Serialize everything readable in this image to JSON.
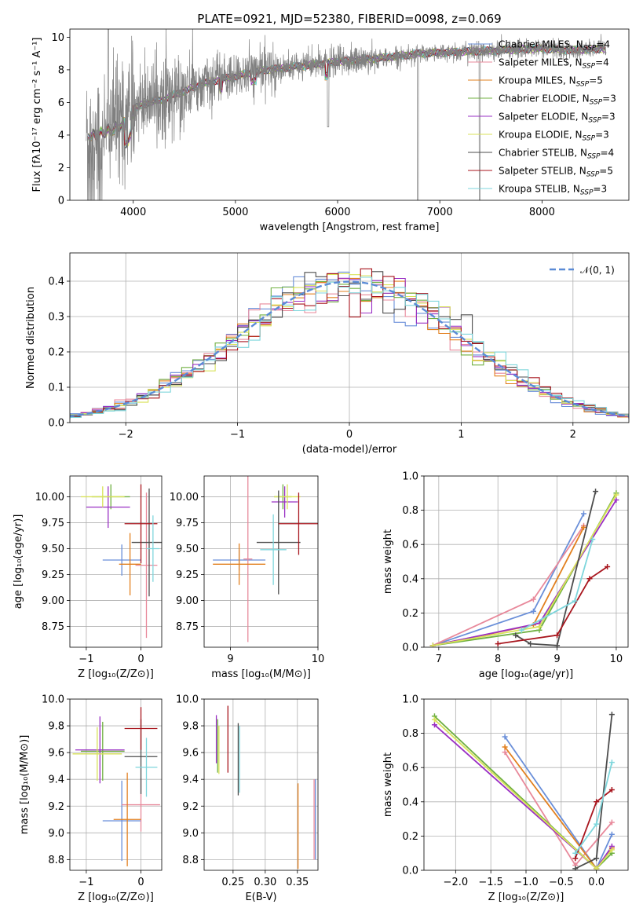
{
  "page_title": "PLATE=0921, MJD=52380, FIBERID=0098, z=0.069",
  "models": [
    {
      "name": "Chabrier MILES",
      "n": "4",
      "color": "#6a8fd9"
    },
    {
      "name": "Salpeter MILES",
      "n": "4",
      "color": "#e8899b"
    },
    {
      "name": "Kroupa MILES",
      "n": "5",
      "color": "#e2801f"
    },
    {
      "name": "Chabrier ELODIE",
      "n": "3",
      "color": "#70b042"
    },
    {
      "name": "Salpeter ELODIE",
      "n": "3",
      "color": "#9a30c4"
    },
    {
      "name": "Kroupa ELODIE",
      "n": "3",
      "color": "#d9e25a"
    },
    {
      "name": "Chabrier STELIB",
      "n": "4",
      "color": "#4d4d4d"
    },
    {
      "name": "Salpeter STELIB",
      "n": "5",
      "color": "#a8161e"
    },
    {
      "name": "Kroupa STELIB",
      "n": "3",
      "color": "#7ed6dc"
    }
  ],
  "legend_sub": "SSP",
  "chart_data": [
    {
      "id": "spectrum",
      "type": "line",
      "xlabel": "wavelength [Angstrom, rest frame]",
      "ylabel": "Flux [fλ10⁻¹⁷ erg cm⁻² s⁻¹ A⁻¹]",
      "xlim": [
        3380,
        8850
      ],
      "ylim": [
        0,
        10.5
      ],
      "xticks": [
        4000,
        5000,
        6000,
        7000,
        8000
      ],
      "yticks": [
        0,
        2,
        4,
        6,
        8,
        10
      ],
      "grid": false,
      "legend": "right",
      "continuum": {
        "x": [
          3550,
          3700,
          3800,
          3900,
          4000,
          4100,
          4300,
          4500,
          4700,
          5000,
          5300,
          5600,
          6000,
          6400,
          6800,
          7200,
          7600,
          8000,
          8300,
          8600
        ],
        "y": [
          4.2,
          4.3,
          4.6,
          4.9,
          5.6,
          5.9,
          6.2,
          6.7,
          7.2,
          7.6,
          8.0,
          8.2,
          8.5,
          8.7,
          9.0,
          9.1,
          9.2,
          9.3,
          9.2,
          9.3
        ]
      }
    },
    {
      "id": "residuals",
      "type": "histogram",
      "xlabel": "(data-model)/error",
      "ylabel": "Normed distribution",
      "xlim": [
        -2.5,
        2.5
      ],
      "ylim": [
        0,
        0.48
      ],
      "xticks": [
        -2,
        -1,
        0,
        1,
        2
      ],
      "yticks": [
        0.0,
        0.1,
        0.2,
        0.3,
        0.4
      ],
      "grid": true,
      "legend": "top-right",
      "reference": "𝒩(0, 1)"
    },
    {
      "id": "age-vs-z",
      "type": "errorbar",
      "xlabel": "Z [log₁₀(Z/Z⊙)]",
      "ylabel": "age  [log₁₀(age/yr)]",
      "xlim": [
        -1.3,
        0.38
      ],
      "ylim": [
        8.55,
        10.2
      ],
      "xticks": [
        -1,
        0
      ],
      "yticks": [
        8.75,
        9.0,
        9.25,
        9.5,
        9.75,
        10.0
      ],
      "grid": true,
      "points": [
        {
          "x": -0.35,
          "y": 9.39,
          "xerr": 0.35,
          "yerr": 0.15,
          "color": "#6a8fd9"
        },
        {
          "x": 0.1,
          "y": 9.34,
          "xerr": 0.2,
          "yerr": 0.7,
          "color": "#e8899b"
        },
        {
          "x": -0.2,
          "y": 9.35,
          "xerr": 0.2,
          "yerr": 0.3,
          "color": "#e2801f"
        },
        {
          "x": -0.55,
          "y": 10.0,
          "xerr": 0.35,
          "yerr": 0.12,
          "color": "#70b042"
        },
        {
          "x": -0.6,
          "y": 9.9,
          "xerr": 0.4,
          "yerr": 0.2,
          "color": "#9a30c4"
        },
        {
          "x": -0.7,
          "y": 10.0,
          "xerr": 0.4,
          "yerr": 0.1,
          "color": "#d9e25a"
        },
        {
          "x": 0.15,
          "y": 9.56,
          "xerr": 0.32,
          "yerr": 0.52,
          "color": "#4d4d4d"
        },
        {
          "x": 0.0,
          "y": 9.74,
          "xerr": 0.3,
          "yerr": 0.38,
          "color": "#a8161e"
        },
        {
          "x": 0.22,
          "y": 9.5,
          "xerr": 0.12,
          "yerr": 0.32,
          "color": "#7ed6dc"
        }
      ]
    },
    {
      "id": "age-vs-mass",
      "type": "errorbar",
      "xlabel": "mass [log₁₀(M/M⊙)]",
      "ylabel": "",
      "xlim": [
        8.7,
        10.0
      ],
      "ylim": [
        8.55,
        10.2
      ],
      "xticks": [
        9,
        10
      ],
      "yticks": [
        8.75,
        9.0,
        9.25,
        9.5,
        9.75,
        10.0
      ],
      "grid": true,
      "points": [
        {
          "x": 9.1,
          "y": 9.39,
          "xerr": 0.3,
          "yerr": 0.1,
          "color": "#6a8fd9"
        },
        {
          "x": 9.2,
          "y": 9.4,
          "xerr": 0.05,
          "yerr": 0.8,
          "color": "#e8899b"
        },
        {
          "x": 9.1,
          "y": 9.35,
          "xerr": 0.3,
          "yerr": 0.2,
          "color": "#e2801f"
        },
        {
          "x": 9.6,
          "y": 10.0,
          "xerr": 0.1,
          "yerr": 0.12,
          "color": "#70b042"
        },
        {
          "x": 9.62,
          "y": 9.95,
          "xerr": 0.15,
          "yerr": 0.15,
          "color": "#9a30c4"
        },
        {
          "x": 9.65,
          "y": 10.0,
          "xerr": 0.15,
          "yerr": 0.12,
          "color": "#d9e25a"
        },
        {
          "x": 9.55,
          "y": 9.56,
          "xerr": 0.25,
          "yerr": 0.5,
          "color": "#4d4d4d"
        },
        {
          "x": 9.78,
          "y": 9.74,
          "xerr": 0.23,
          "yerr": 0.3,
          "color": "#a8161e"
        },
        {
          "x": 9.49,
          "y": 9.49,
          "xerr": 0.15,
          "yerr": 0.34,
          "color": "#7ed6dc"
        }
      ]
    },
    {
      "id": "weight-vs-age",
      "type": "line",
      "xlabel": "age  [log₁₀(age/yr)]",
      "ylabel": "mass weight",
      "xlim": [
        6.75,
        10.2
      ],
      "ylim": [
        0,
        1.0
      ],
      "xticks": [
        7,
        8,
        9,
        10
      ],
      "yticks": [
        0.0,
        0.2,
        0.4,
        0.6,
        0.8,
        1.0
      ],
      "grid": true,
      "series": [
        {
          "x": [
            6.9,
            8.6,
            9.45
          ],
          "y": [
            0.01,
            0.21,
            0.78
          ],
          "color": "#6a8fd9"
        },
        {
          "x": [
            6.9,
            8.6,
            9.45
          ],
          "y": [
            0.01,
            0.28,
            0.71
          ],
          "color": "#e8899b"
        },
        {
          "x": [
            6.9,
            8.6,
            9.45
          ],
          "y": [
            0.01,
            0.13,
            0.7
          ],
          "color": "#e2801f"
        },
        {
          "x": [
            6.9,
            8.7,
            10.0
          ],
          "y": [
            0.01,
            0.1,
            0.9
          ],
          "color": "#70b042"
        },
        {
          "x": [
            6.9,
            8.7,
            10.0
          ],
          "y": [
            0.01,
            0.14,
            0.86
          ],
          "color": "#9a30c4"
        },
        {
          "x": [
            6.9,
            8.7,
            10.0
          ],
          "y": [
            0.01,
            0.12,
            0.89
          ],
          "color": "#d9e25a"
        },
        {
          "x": [
            8.3,
            8.55,
            9.0,
            9.65
          ],
          "y": [
            0.07,
            0.02,
            0.01,
            0.91
          ],
          "color": "#4d4d4d"
        },
        {
          "x": [
            8.0,
            9.0,
            9.55,
            9.85
          ],
          "y": [
            0.02,
            0.07,
            0.4,
            0.47
          ],
          "color": "#a8161e"
        },
        {
          "x": [
            8.4,
            9.3,
            9.6
          ],
          "y": [
            0.1,
            0.27,
            0.63
          ],
          "color": "#7ed6dc"
        }
      ]
    },
    {
      "id": "mass-vs-z",
      "type": "errorbar",
      "xlabel": "Z [log₁₀(Z/Z⊙)]",
      "ylabel": "mass [log₁₀(M/M⊙)]",
      "xlim": [
        -1.3,
        0.38
      ],
      "ylim": [
        8.72,
        10.0
      ],
      "xticks": [
        -1,
        0
      ],
      "yticks": [
        8.8,
        9.0,
        9.2,
        9.4,
        9.6,
        9.8,
        10.0
      ],
      "grid": true,
      "points": [
        {
          "x": -0.35,
          "y": 9.09,
          "xerr": 0.35,
          "yerr": 0.3,
          "color": "#6a8fd9"
        },
        {
          "x": 0.0,
          "y": 9.21,
          "xerr": 0.35,
          "yerr": 0.2,
          "color": "#e8899b"
        },
        {
          "x": -0.25,
          "y": 9.1,
          "xerr": 0.25,
          "yerr": 0.35,
          "color": "#e2801f"
        },
        {
          "x": -0.7,
          "y": 9.61,
          "xerr": 0.4,
          "yerr": 0.22,
          "color": "#70b042"
        },
        {
          "x": -0.75,
          "y": 9.62,
          "xerr": 0.45,
          "yerr": 0.25,
          "color": "#9a30c4"
        },
        {
          "x": -0.8,
          "y": 9.59,
          "xerr": 0.45,
          "yerr": 0.2,
          "color": "#d9e25a"
        },
        {
          "x": 0.0,
          "y": 9.57,
          "xerr": 0.3,
          "yerr": 0.28,
          "color": "#4d4d4d"
        },
        {
          "x": 0.0,
          "y": 9.78,
          "xerr": 0.3,
          "yerr": 0.16,
          "color": "#a8161e"
        },
        {
          "x": 0.1,
          "y": 9.49,
          "xerr": 0.2,
          "yerr": 0.22,
          "color": "#7ed6dc"
        }
      ]
    },
    {
      "id": "mass-vs-ebv",
      "type": "errorbar",
      "xlabel": "E(B-V)",
      "ylabel": "",
      "xlim": [
        0.205,
        0.382
      ],
      "ylim": [
        8.72,
        10.0
      ],
      "xticks": [
        0.25,
        0.3,
        0.35
      ],
      "yticks": [
        8.8,
        9.0,
        9.2,
        9.4,
        9.6,
        9.8,
        10.0
      ],
      "grid": true,
      "points": [
        {
          "x": 0.378,
          "y": 9.1,
          "xerr": 0,
          "yerr": 0.3,
          "color": "#6a8fd9"
        },
        {
          "x": 0.376,
          "y": 9.1,
          "xerr": 0,
          "yerr": 0.3,
          "color": "#e8899b"
        },
        {
          "x": 0.351,
          "y": 9.05,
          "xerr": 0,
          "yerr": 0.32,
          "color": "#e2801f"
        },
        {
          "x": 0.226,
          "y": 9.65,
          "xerr": 0,
          "yerr": 0.2,
          "color": "#70b042"
        },
        {
          "x": 0.224,
          "y": 9.7,
          "xerr": 0,
          "yerr": 0.18,
          "color": "#9a30c4"
        },
        {
          "x": 0.228,
          "y": 9.62,
          "xerr": 0,
          "yerr": 0.18,
          "color": "#d9e25a"
        },
        {
          "x": 0.258,
          "y": 9.55,
          "xerr": 0,
          "yerr": 0.27,
          "color": "#4d4d4d"
        },
        {
          "x": 0.242,
          "y": 9.7,
          "xerr": 0,
          "yerr": 0.25,
          "color": "#a8161e"
        },
        {
          "x": 0.26,
          "y": 9.55,
          "xerr": 0,
          "yerr": 0.25,
          "color": "#7ed6dc"
        }
      ]
    },
    {
      "id": "weight-vs-z",
      "type": "line",
      "xlabel": "Z [log₁₀(Z/Z⊙)]",
      "ylabel": "mass weight",
      "xlim": [
        -2.45,
        0.45
      ],
      "ylim": [
        0,
        1.0
      ],
      "xticks": [
        -2.0,
        -1.5,
        -1.0,
        -0.5,
        0.0
      ],
      "yticks": [
        0.0,
        0.2,
        0.4,
        0.6,
        0.8,
        1.0
      ],
      "grid": true,
      "series": [
        {
          "x": [
            -1.3,
            0.0,
            0.22
          ],
          "y": [
            0.78,
            0.01,
            0.21
          ],
          "color": "#6a8fd9"
        },
        {
          "x": [
            -1.3,
            -0.3,
            0.22
          ],
          "y": [
            0.69,
            0.03,
            0.28
          ],
          "color": "#e8899b"
        },
        {
          "x": [
            -1.3,
            0.0,
            0.22
          ],
          "y": [
            0.72,
            0.01,
            0.13
          ],
          "color": "#e2801f"
        },
        {
          "x": [
            -2.3,
            0.0,
            0.22
          ],
          "y": [
            0.9,
            0.01,
            0.1
          ],
          "color": "#70b042"
        },
        {
          "x": [
            -2.3,
            0.0,
            0.22
          ],
          "y": [
            0.85,
            0.01,
            0.14
          ],
          "color": "#9a30c4"
        },
        {
          "x": [
            -2.3,
            0.0,
            0.22
          ],
          "y": [
            0.88,
            0.01,
            0.12
          ],
          "color": "#d9e25a"
        },
        {
          "x": [
            -0.3,
            0.0,
            0.22
          ],
          "y": [
            0.01,
            0.07,
            0.91
          ],
          "color": "#4d4d4d"
        },
        {
          "x": [
            -0.3,
            0.0,
            0.22
          ],
          "y": [
            0.07,
            0.4,
            0.47
          ],
          "color": "#a8161e"
        },
        {
          "x": [
            -0.3,
            0.0,
            0.22
          ],
          "y": [
            0.1,
            0.27,
            0.63
          ],
          "color": "#7ed6dc"
        }
      ]
    }
  ]
}
